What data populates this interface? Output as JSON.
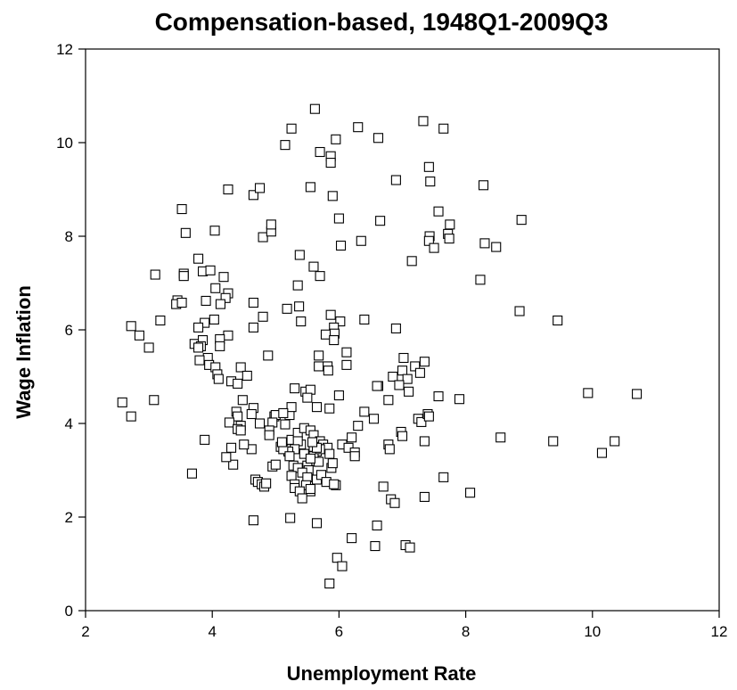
{
  "chart_data": {
    "type": "scatter",
    "title": "Compensation-based, 1948Q1-2009Q3",
    "xlabel": "Unemployment Rate",
    "ylabel": "Wage Inflation",
    "xlim": [
      2,
      12
    ],
    "ylim": [
      0,
      12
    ],
    "xticks": [
      2,
      4,
      6,
      8,
      10,
      12
    ],
    "yticks": [
      0,
      2,
      4,
      6,
      8,
      10,
      12
    ],
    "grid": false,
    "marker": "open-square",
    "colors": {
      "marker_stroke": "#000000",
      "marker_fill": "#ffffff",
      "axis": "#000000"
    },
    "points": [
      [
        5.62,
        10.72
      ],
      [
        5.25,
        10.3
      ],
      [
        6.3,
        10.33
      ],
      [
        7.33,
        10.46
      ],
      [
        7.65,
        10.3
      ],
      [
        5.15,
        9.95
      ],
      [
        5.95,
        10.07
      ],
      [
        6.62,
        10.1
      ],
      [
        5.7,
        9.8
      ],
      [
        5.87,
        9.71
      ],
      [
        5.87,
        9.57
      ],
      [
        7.42,
        9.48
      ],
      [
        7.44,
        9.17
      ],
      [
        6.9,
        9.2
      ],
      [
        8.28,
        9.09
      ],
      [
        4.25,
        9.0
      ],
      [
        4.65,
        8.88
      ],
      [
        4.75,
        9.03
      ],
      [
        5.55,
        9.05
      ],
      [
        5.9,
        8.86
      ],
      [
        3.52,
        8.58
      ],
      [
        3.58,
        8.07
      ],
      [
        4.04,
        8.12
      ],
      [
        4.8,
        7.98
      ],
      [
        4.93,
        8.1
      ],
      [
        4.93,
        8.25
      ],
      [
        6.0,
        8.38
      ],
      [
        6.65,
        8.33
      ],
      [
        7.57,
        8.53
      ],
      [
        7.75,
        8.25
      ],
      [
        7.72,
        8.05
      ],
      [
        7.74,
        7.95
      ],
      [
        7.43,
        8.0
      ],
      [
        7.42,
        7.9
      ],
      [
        7.5,
        7.75
      ],
      [
        6.35,
        7.9
      ],
      [
        6.03,
        7.8
      ],
      [
        8.3,
        7.85
      ],
      [
        8.48,
        7.77
      ],
      [
        8.88,
        8.35
      ],
      [
        8.23,
        7.07
      ],
      [
        7.15,
        7.47
      ],
      [
        5.38,
        7.6
      ],
      [
        5.6,
        7.35
      ],
      [
        5.7,
        7.15
      ],
      [
        3.78,
        7.52
      ],
      [
        3.85,
        7.25
      ],
      [
        3.97,
        7.27
      ],
      [
        3.55,
        7.2
      ],
      [
        3.55,
        7.15
      ],
      [
        3.1,
        7.18
      ],
      [
        4.18,
        7.13
      ],
      [
        4.05,
        6.89
      ],
      [
        4.25,
        6.78
      ],
      [
        4.21,
        6.68
      ],
      [
        3.45,
        6.63
      ],
      [
        3.43,
        6.55
      ],
      [
        3.52,
        6.58
      ],
      [
        3.9,
        6.62
      ],
      [
        4.13,
        6.55
      ],
      [
        4.65,
        6.58
      ],
      [
        5.35,
        6.95
      ],
      [
        5.37,
        6.5
      ],
      [
        5.18,
        6.45
      ],
      [
        4.8,
        6.28
      ],
      [
        3.18,
        6.2
      ],
      [
        2.72,
        6.08
      ],
      [
        3.0,
        5.62
      ],
      [
        2.85,
        5.88
      ],
      [
        3.88,
        6.15
      ],
      [
        4.03,
        6.22
      ],
      [
        3.78,
        6.05
      ],
      [
        4.25,
        5.88
      ],
      [
        4.65,
        6.05
      ],
      [
        5.4,
        6.18
      ],
      [
        5.87,
        6.32
      ],
      [
        6.02,
        6.18
      ],
      [
        6.4,
        6.22
      ],
      [
        6.9,
        6.03
      ],
      [
        8.85,
        6.4
      ],
      [
        9.45,
        6.2
      ],
      [
        5.92,
        6.05
      ],
      [
        5.93,
        5.92
      ],
      [
        5.79,
        5.9
      ],
      [
        5.92,
        5.78
      ],
      [
        3.72,
        5.7
      ],
      [
        3.85,
        5.78
      ],
      [
        3.82,
        5.65
      ],
      [
        3.78,
        5.62
      ],
      [
        4.12,
        5.8
      ],
      [
        4.12,
        5.65
      ],
      [
        3.93,
        5.4
      ],
      [
        3.95,
        5.25
      ],
      [
        3.8,
        5.35
      ],
      [
        4.05,
        5.2
      ],
      [
        4.08,
        5.05
      ],
      [
        4.1,
        4.95
      ],
      [
        4.45,
        5.2
      ],
      [
        4.55,
        5.02
      ],
      [
        4.3,
        4.9
      ],
      [
        4.4,
        4.85
      ],
      [
        4.88,
        5.45
      ],
      [
        5.68,
        5.45
      ],
      [
        5.68,
        5.22
      ],
      [
        5.82,
        5.22
      ],
      [
        5.83,
        5.13
      ],
      [
        6.12,
        5.52
      ],
      [
        6.12,
        5.25
      ],
      [
        7.02,
        5.4
      ],
      [
        7.2,
        5.22
      ],
      [
        7.35,
        5.32
      ],
      [
        7.0,
        5.13
      ],
      [
        7.28,
        5.08
      ],
      [
        6.85,
        5.0
      ],
      [
        7.08,
        4.95
      ],
      [
        6.95,
        4.82
      ],
      [
        7.1,
        4.68
      ],
      [
        6.62,
        4.8
      ],
      [
        6.0,
        4.6
      ],
      [
        5.22,
        4.18
      ],
      [
        5.25,
        4.35
      ],
      [
        5.3,
        4.75
      ],
      [
        5.47,
        4.68
      ],
      [
        5.55,
        4.72
      ],
      [
        5.5,
        4.55
      ],
      [
        5.65,
        4.35
      ],
      [
        5.85,
        4.32
      ],
      [
        6.4,
        4.25
      ],
      [
        6.78,
        4.5
      ],
      [
        7.57,
        4.58
      ],
      [
        7.9,
        4.52
      ],
      [
        9.93,
        4.65
      ],
      [
        10.7,
        4.63
      ],
      [
        2.58,
        4.45
      ],
      [
        2.72,
        4.15
      ],
      [
        3.08,
        4.5
      ],
      [
        4.48,
        4.5
      ],
      [
        4.65,
        4.33
      ],
      [
        4.62,
        4.2
      ],
      [
        4.38,
        4.25
      ],
      [
        4.4,
        4.15
      ],
      [
        4.27,
        4.02
      ],
      [
        4.45,
        3.95
      ],
      [
        4.4,
        3.88
      ],
      [
        4.45,
        3.85
      ],
      [
        4.75,
        4.0
      ],
      [
        4.98,
        4.15
      ],
      [
        5.0,
        4.18
      ],
      [
        4.95,
        4.02
      ],
      [
        4.9,
        3.85
      ],
      [
        4.9,
        3.75
      ],
      [
        5.12,
        4.22
      ],
      [
        5.15,
        3.98
      ],
      [
        5.08,
        3.5
      ],
      [
        5.25,
        3.65
      ],
      [
        5.35,
        3.8
      ],
      [
        5.45,
        3.9
      ],
      [
        5.55,
        3.85
      ],
      [
        5.6,
        3.75
      ],
      [
        5.7,
        3.62
      ],
      [
        5.75,
        3.55
      ],
      [
        5.82,
        3.48
      ],
      [
        5.85,
        3.35
      ],
      [
        5.88,
        3.05
      ],
      [
        5.9,
        3.15
      ],
      [
        5.65,
        3.4
      ],
      [
        5.6,
        3.3
      ],
      [
        5.55,
        3.2
      ],
      [
        5.5,
        3.1
      ],
      [
        5.52,
        3.0
      ],
      [
        5.45,
        3.35
      ],
      [
        5.4,
        3.55
      ],
      [
        5.35,
        3.62
      ],
      [
        5.3,
        3.45
      ],
      [
        5.2,
        3.4
      ],
      [
        5.12,
        3.45
      ],
      [
        5.1,
        3.6
      ],
      [
        5.22,
        3.3
      ],
      [
        5.28,
        3.1
      ],
      [
        5.35,
        3.05
      ],
      [
        5.42,
        2.95
      ],
      [
        5.5,
        2.85
      ],
      [
        5.48,
        2.68
      ],
      [
        5.55,
        2.55
      ],
      [
        5.65,
        2.8
      ],
      [
        5.72,
        2.9
      ],
      [
        5.8,
        2.75
      ],
      [
        5.95,
        2.68
      ],
      [
        6.05,
        3.55
      ],
      [
        6.15,
        3.48
      ],
      [
        6.25,
        3.38
      ],
      [
        6.25,
        3.3
      ],
      [
        6.3,
        3.95
      ],
      [
        6.2,
        3.7
      ],
      [
        6.55,
        4.1
      ],
      [
        6.6,
        4.8
      ],
      [
        6.78,
        3.55
      ],
      [
        6.8,
        3.45
      ],
      [
        6.98,
        3.82
      ],
      [
        7.0,
        3.73
      ],
      [
        7.25,
        4.1
      ],
      [
        7.3,
        4.03
      ],
      [
        7.4,
        4.2
      ],
      [
        7.35,
        3.62
      ],
      [
        7.42,
        4.15
      ],
      [
        8.55,
        3.7
      ],
      [
        9.38,
        3.62
      ],
      [
        10.35,
        3.62
      ],
      [
        10.15,
        3.37
      ],
      [
        7.65,
        2.85
      ],
      [
        7.35,
        2.43
      ],
      [
        8.07,
        2.52
      ],
      [
        6.7,
        2.65
      ],
      [
        6.82,
        2.38
      ],
      [
        6.88,
        2.3
      ],
      [
        6.6,
        1.82
      ],
      [
        6.57,
        1.38
      ],
      [
        6.2,
        1.55
      ],
      [
        7.05,
        1.4
      ],
      [
        7.12,
        1.35
      ],
      [
        5.97,
        1.13
      ],
      [
        6.05,
        0.95
      ],
      [
        5.85,
        0.58
      ],
      [
        5.65,
        1.87
      ],
      [
        5.23,
        1.98
      ],
      [
        4.65,
        1.93
      ],
      [
        4.62,
        3.45
      ],
      [
        4.5,
        3.55
      ],
      [
        4.3,
        3.48
      ],
      [
        4.33,
        3.12
      ],
      [
        4.22,
        3.28
      ],
      [
        3.88,
        3.65
      ],
      [
        3.68,
        2.93
      ],
      [
        4.68,
        2.8
      ],
      [
        4.72,
        2.75
      ],
      [
        4.78,
        2.7
      ],
      [
        4.82,
        2.65
      ],
      [
        4.85,
        2.72
      ],
      [
        4.95,
        3.08
      ],
      [
        5.0,
        3.12
      ],
      [
        5.25,
        2.88
      ],
      [
        5.3,
        2.7
      ],
      [
        5.3,
        2.62
      ],
      [
        5.38,
        2.55
      ],
      [
        5.42,
        2.4
      ],
      [
        5.55,
        2.6
      ],
      [
        5.92,
        2.7
      ],
      [
        5.6,
        3.5
      ],
      [
        5.7,
        3.45
      ],
      [
        5.65,
        3.48
      ],
      [
        5.58,
        3.6
      ],
      [
        5.68,
        3.18
      ],
      [
        5.55,
        3.25
      ]
    ]
  }
}
